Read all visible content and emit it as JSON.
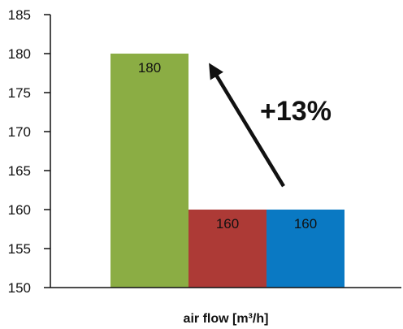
{
  "chart_data": {
    "type": "bar",
    "categories": [
      "",
      "",
      ""
    ],
    "values": [
      180,
      160,
      160
    ],
    "colors": [
      "#8bad44",
      "#ad3a36",
      "#0a79c3"
    ],
    "data_labels": [
      "180",
      "160",
      "160"
    ],
    "title": "",
    "xlabel": "air flow [m³/h]",
    "ylabel": "",
    "ylim": [
      150,
      185
    ],
    "yticks": [
      150,
      155,
      160,
      165,
      170,
      175,
      180,
      185
    ],
    "ytick_labels": [
      "150",
      "155",
      "160",
      "165",
      "170",
      "175",
      "180",
      "185"
    ],
    "grid": false,
    "legend": "none",
    "annotation": {
      "text": "+13%",
      "arrow_from_value": 163,
      "arrow_to_value": 179
    }
  }
}
